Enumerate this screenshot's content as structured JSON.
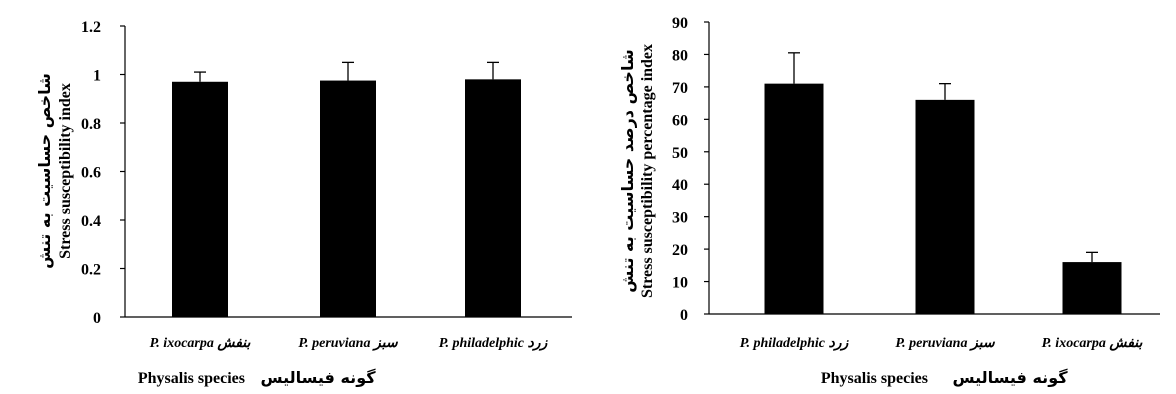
{
  "chart_data": [
    {
      "type": "bar",
      "categories": [
        "P. ixocarpa بنفش",
        "P. peruviana  سبز",
        "P. philadelphic زرد"
      ],
      "values": [
        0.97,
        0.975,
        0.98
      ],
      "errors": [
        0.04,
        0.075,
        0.07
      ],
      "ylim": [
        0,
        1.2
      ],
      "yticks": [
        "0",
        "0.2",
        "0.4",
        "0.6",
        "0.8",
        "1",
        "1.2"
      ],
      "ylabel_en": "Stress susceptibility index",
      "ylabel_fa": "شاخص حساسیت به تنش",
      "xlabel_en": "Physalis species",
      "xlabel_fa": "گونه فیسالیس",
      "grid": false,
      "bar_color": "#000000"
    },
    {
      "type": "bar",
      "categories": [
        "P. philadelphic زرد",
        "P. peruviana  سبز",
        "P. ixocarpa بنفش"
      ],
      "values": [
        71,
        66,
        16
      ],
      "errors": [
        9.5,
        5,
        3
      ],
      "ylim": [
        0,
        90
      ],
      "yticks": [
        "0",
        "10",
        "20",
        "30",
        "40",
        "50",
        "60",
        "70",
        "80",
        "90"
      ],
      "ylabel_en": "Stress susceptibility percentage index",
      "ylabel_fa": "شاخص درصد حساسیت به تنش",
      "xlabel_en": "Physalis species",
      "xlabel_fa": "گونه فیسالیس",
      "grid": false,
      "bar_color": "#000000"
    }
  ]
}
